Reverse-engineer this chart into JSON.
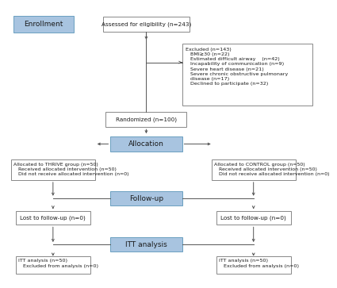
{
  "bg_color": "#ffffff",
  "blue_fill": "#a8c4e0",
  "blue_edge": "#6a9fc0",
  "white_fill": "#ffffff",
  "white_edge": "#888888",
  "text_color": "#1a1a1a",
  "arrow_color": "#555555",
  "enrollment_label": "Enrollment",
  "allocation_label": "Allocation",
  "followup_label": "Follow-up",
  "itt_label": "ITT analysis",
  "assess_text": "Assessed for eligibility (n=243)",
  "excluded_line1": "Excluded (n=143)",
  "excluded_line2": "   BMI≥30 (n=22)",
  "excluded_line3": "   Estimated difficult airway    (n=42)",
  "excluded_line4": "   Incapability of communication (n=9)",
  "excluded_line5": "   Severe heart disease (n=21)",
  "excluded_line6": "   Severe chronic obstructive pulmonary",
  "excluded_line7": "   disease (n=17)",
  "excluded_line8": "   Declined to participate (n=32)",
  "randomized_text": "Randomized (n=100)",
  "thrive_line1": "Allocated to THRIVE group (n=50)",
  "thrive_line2": "   Received allocated intervention (n=50)",
  "thrive_line3": "   Did not receive allocated intervention (n=0)",
  "control_line1": "Allocated to CONTROL group (n=50)",
  "control_line2": "   Received allocated intervention (n=50)",
  "control_line3": "   Did not receive allocated intervention (n=0)",
  "lost_left_text": "Lost to follow-up (n=0)",
  "lost_right_text": "Lost to follow-up (n=0)",
  "itt_left_line1": "ITT analysis (n=50)",
  "itt_left_line2": "   Excluded from analysis (n=0)",
  "itt_right_line1": "ITT analysis (n=50)",
  "itt_right_line2": "   Excluded from analysis (n=0)",
  "fs_main": 5.2,
  "fs_blue": 6.5,
  "fs_enroll": 6.5
}
